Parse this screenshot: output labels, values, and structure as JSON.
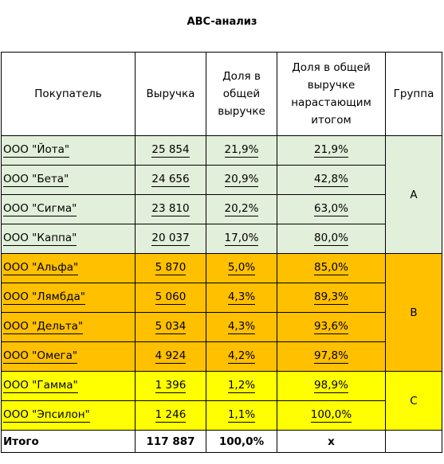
{
  "title": "ABC-анализ",
  "headers": {
    "buyer": "Покупатель",
    "revenue": "Выручка",
    "share": "Доля в общей выручке",
    "cumulative": "Доля в общей выручке нарастающим итогом",
    "group": "Группа"
  },
  "rows": [
    {
      "buyer": "ООО \"Йота\"",
      "revenue": "25 854",
      "share": "21,9%",
      "cumulative": "21,9%"
    },
    {
      "buyer": "ООО \"Бета\"",
      "revenue": "24 656",
      "share": "20,9%",
      "cumulative": "42,8%"
    },
    {
      "buyer": "ООО \"Сигма\"",
      "revenue": "23 810",
      "share": "20,2%",
      "cumulative": "63,0%"
    },
    {
      "buyer": "ООО \"Каппа\"",
      "revenue": "20 037",
      "share": "17,0%",
      "cumulative": "80,0%"
    },
    {
      "buyer": "ООО \"Альфа\"",
      "revenue": "5 870",
      "share": "5,0%",
      "cumulative": "85,0%"
    },
    {
      "buyer": "ООО \"Лямбда\"",
      "revenue": "5 060",
      "share": "4,3%",
      "cumulative": "89,3%"
    },
    {
      "buyer": "ООО \"Дельта\"",
      "revenue": "5 034",
      "share": "4,3%",
      "cumulative": "93,6%"
    },
    {
      "buyer": "ООО \"Омега\"",
      "revenue": "4 924",
      "share": "4,2%",
      "cumulative": "97,8%"
    },
    {
      "buyer": "ООО \"Гамма\"",
      "revenue": "1 396",
      "share": "1,2%",
      "cumulative": "98,9%"
    },
    {
      "buyer": "ООО \"Эпсилон\"",
      "revenue": "1 246",
      "share": "1,1%",
      "cumulative": "100,0%"
    }
  ],
  "groups": {
    "a": "A",
    "b": "B",
    "c": "C"
  },
  "total": {
    "label": "Итого",
    "revenue": "117 887",
    "share": "100,0%",
    "cumulative": "x"
  },
  "colors": {
    "group_a": "#e2efda",
    "group_b": "#ffc000",
    "group_c": "#ffff00"
  }
}
